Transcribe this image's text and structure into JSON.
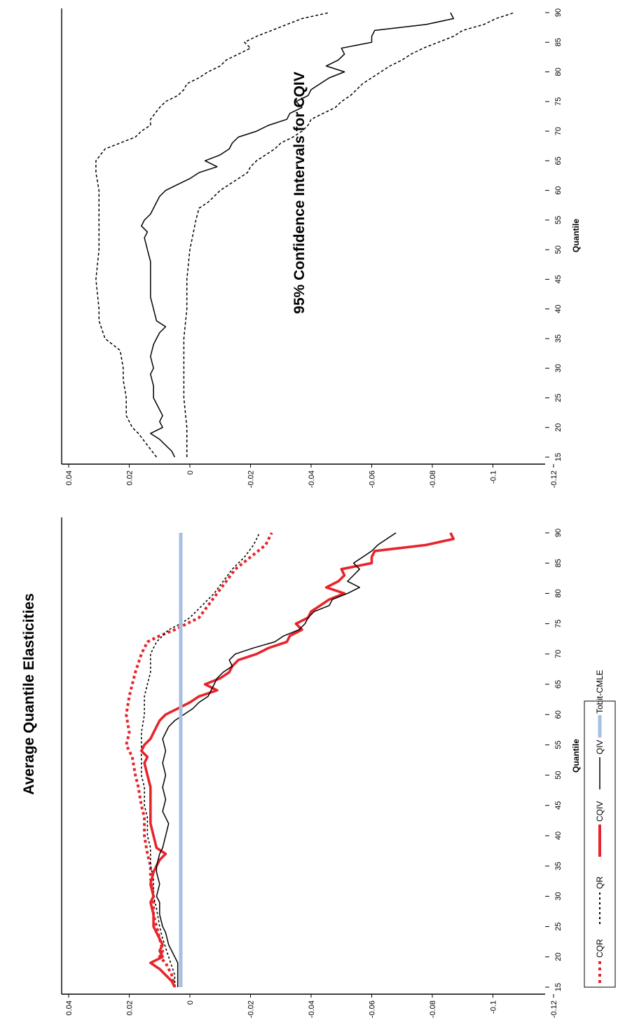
{
  "chart_data": [
    {
      "type": "line",
      "title": "Average Quantile Elasticities",
      "xlabel": "Quantile",
      "ylabel": "",
      "xlim": [
        15,
        90
      ],
      "ylim": [
        -0.12,
        0.04
      ],
      "xticks": [
        "15",
        "20",
        "25",
        "30",
        "35",
        "40",
        "45",
        "50",
        "55",
        "60",
        "65",
        "70",
        "75",
        "80",
        "85",
        "90"
      ],
      "yticks": [
        "0.04",
        "0.02",
        "0",
        "-0.02",
        "-0.04",
        "-0.06",
        "-0.08",
        "-0.1",
        "-0.12"
      ],
      "legend_position": "bottom",
      "series": [
        {
          "name": "CQR",
          "color": "#e8242b",
          "style": "thick-dotted",
          "x": [
            15,
            17,
            19,
            20,
            21,
            23,
            25,
            27,
            30,
            33,
            35,
            37,
            40,
            43,
            45,
            48,
            50,
            53,
            55,
            57,
            60,
            63,
            65,
            67,
            70,
            72,
            73,
            74,
            75,
            76,
            78,
            80,
            82,
            84,
            86,
            88,
            90
          ],
          "y": [
            0.005,
            0.006,
            0.008,
            0.01,
            0.009,
            0.01,
            0.011,
            0.012,
            0.012,
            0.013,
            0.013,
            0.014,
            0.015,
            0.015,
            0.016,
            0.017,
            0.018,
            0.019,
            0.021,
            0.02,
            0.021,
            0.02,
            0.019,
            0.018,
            0.016,
            0.014,
            0.01,
            0.005,
            0.001,
            -0.003,
            -0.006,
            -0.009,
            -0.012,
            -0.015,
            -0.02,
            -0.025,
            -0.027
          ]
        },
        {
          "name": "QR",
          "color": "#000000",
          "style": "dotted",
          "x": [
            15,
            17,
            20,
            23,
            25,
            28,
            30,
            33,
            35,
            38,
            40,
            43,
            45,
            48,
            50,
            53,
            55,
            57,
            60,
            63,
            65,
            67,
            70,
            72,
            74,
            75,
            76,
            78,
            80,
            82,
            84,
            86,
            88,
            90
          ],
          "y": [
            0.005,
            0.005,
            0.007,
            0.009,
            0.01,
            0.011,
            0.012,
            0.012,
            0.013,
            0.013,
            0.014,
            0.014,
            0.015,
            0.015,
            0.016,
            0.016,
            0.016,
            0.016,
            0.015,
            0.015,
            0.014,
            0.013,
            0.013,
            0.011,
            0.007,
            0.003,
            0.0,
            -0.004,
            -0.008,
            -0.011,
            -0.014,
            -0.018,
            -0.021,
            -0.023
          ]
        },
        {
          "name": "CQIV",
          "color": "#e8242b",
          "style": "thick-solid",
          "x": [
            15,
            16,
            17,
            18,
            19,
            20,
            21,
            22,
            24,
            25,
            27,
            29,
            30,
            32,
            34,
            35,
            36,
            37,
            38,
            40,
            42,
            45,
            48,
            50,
            52,
            53,
            54,
            55,
            56,
            57,
            58,
            59,
            60,
            61,
            62,
            63,
            64,
            65,
            66,
            67,
            68,
            69,
            70,
            71,
            72,
            73,
            74,
            75,
            76,
            77,
            78,
            79,
            80,
            81,
            82,
            83,
            84,
            85,
            86,
            87,
            88,
            89,
            90
          ],
          "y": [
            0.005,
            0.006,
            0.008,
            0.01,
            0.013,
            0.009,
            0.01,
            0.009,
            0.011,
            0.012,
            0.012,
            0.013,
            0.012,
            0.013,
            0.012,
            0.011,
            0.01,
            0.008,
            0.011,
            0.012,
            0.013,
            0.013,
            0.013,
            0.014,
            0.015,
            0.014,
            0.016,
            0.015,
            0.013,
            0.012,
            0.011,
            0.01,
            0.008,
            0.004,
            0.0,
            -0.003,
            -0.009,
            -0.005,
            -0.01,
            -0.013,
            -0.014,
            -0.016,
            -0.022,
            -0.026,
            -0.032,
            -0.033,
            -0.037,
            -0.035,
            -0.039,
            -0.04,
            -0.043,
            -0.046,
            -0.051,
            -0.045,
            -0.049,
            -0.051,
            -0.05,
            -0.06,
            -0.06,
            -0.061,
            -0.078,
            -0.087,
            -0.086
          ]
        },
        {
          "name": "QIV",
          "color": "#000000",
          "style": "solid",
          "x": [
            15,
            17,
            19,
            20,
            22,
            24,
            25,
            27,
            29,
            30,
            32,
            34,
            35,
            37,
            38,
            40,
            42,
            44,
            46,
            48,
            50,
            52,
            54,
            56,
            58,
            59,
            60,
            61,
            62,
            63,
            64,
            65,
            66,
            67,
            68,
            69,
            70,
            71,
            72,
            73,
            74,
            75,
            76,
            77,
            78,
            79,
            80,
            81,
            82,
            83,
            84,
            85,
            86,
            87,
            88,
            89,
            90
          ],
          "y": [
            0.004,
            0.004,
            0.004,
            0.005,
            0.007,
            0.008,
            0.009,
            0.01,
            0.01,
            0.011,
            0.01,
            0.011,
            0.011,
            0.01,
            0.009,
            0.008,
            0.007,
            0.009,
            0.008,
            0.009,
            0.008,
            0.009,
            0.008,
            0.009,
            0.007,
            0.005,
            0.002,
            -0.001,
            -0.003,
            -0.006,
            -0.007,
            -0.008,
            -0.009,
            -0.011,
            -0.014,
            -0.013,
            -0.015,
            -0.021,
            -0.028,
            -0.031,
            -0.036,
            -0.038,
            -0.039,
            -0.041,
            -0.046,
            -0.047,
            -0.052,
            -0.056,
            -0.052,
            -0.054,
            -0.056,
            -0.054,
            -0.057,
            -0.06,
            -0.062,
            -0.065,
            -0.068
          ]
        },
        {
          "name": "Tobit-CMLE",
          "color": "#a9bfe0",
          "style": "thick-light",
          "x": [
            15,
            90
          ],
          "y": [
            0.003,
            0.003
          ]
        }
      ]
    },
    {
      "type": "line",
      "title": "95% Confidence Intervals for CQIV",
      "xlabel": "Quantile",
      "ylabel": "",
      "xlim": [
        15,
        90
      ],
      "ylim": [
        -0.12,
        0.04
      ],
      "xticks": [
        "15",
        "20",
        "25",
        "30",
        "35",
        "40",
        "45",
        "50",
        "55",
        "60",
        "65",
        "70",
        "75",
        "80",
        "85",
        "90"
      ],
      "yticks": [
        "0.04",
        "0.02",
        "0",
        "-0.02",
        "-0.04",
        "-0.06",
        "-0.08",
        "-0.1",
        "-0.12"
      ],
      "series": [
        {
          "color": "#000000",
          "style": "dashed",
          "x": [
            15,
            17,
            19,
            20,
            22,
            25,
            28,
            30,
            33,
            35,
            38,
            40,
            45,
            50,
            55,
            60,
            63,
            65,
            67,
            68,
            69,
            70,
            71,
            72,
            74,
            75,
            76,
            77,
            78,
            79,
            80,
            81,
            82,
            83,
            84,
            85,
            86,
            87,
            88,
            89,
            90
          ],
          "y": [
            0.011,
            0.014,
            0.017,
            0.019,
            0.021,
            0.021,
            0.022,
            0.022,
            0.023,
            0.028,
            0.03,
            0.03,
            0.031,
            0.03,
            0.03,
            0.03,
            0.031,
            0.031,
            0.028,
            0.023,
            0.018,
            0.016,
            0.013,
            0.013,
            0.01,
            0.008,
            0.004,
            0.002,
            0.001,
            -0.003,
            -0.006,
            -0.01,
            -0.012,
            -0.016,
            -0.02,
            -0.018,
            -0.022,
            -0.027,
            -0.032,
            -0.037,
            -0.046
          ]
        },
        {
          "color": "#000000",
          "style": "solid",
          "x": [
            15,
            16,
            17,
            18,
            19,
            20,
            21,
            22,
            24,
            25,
            27,
            29,
            30,
            32,
            34,
            35,
            36,
            37,
            38,
            40,
            42,
            45,
            48,
            50,
            52,
            53,
            54,
            55,
            56,
            57,
            58,
            59,
            60,
            61,
            62,
            63,
            64,
            65,
            66,
            67,
            68,
            69,
            70,
            71,
            72,
            73,
            74,
            75,
            76,
            77,
            78,
            79,
            80,
            81,
            82,
            83,
            84,
            85,
            86,
            87,
            88,
            89,
            90
          ],
          "y": [
            0.005,
            0.006,
            0.008,
            0.01,
            0.013,
            0.009,
            0.01,
            0.009,
            0.011,
            0.012,
            0.012,
            0.013,
            0.012,
            0.013,
            0.012,
            0.011,
            0.01,
            0.008,
            0.011,
            0.012,
            0.013,
            0.013,
            0.013,
            0.014,
            0.015,
            0.014,
            0.016,
            0.015,
            0.013,
            0.012,
            0.011,
            0.01,
            0.008,
            0.004,
            0.0,
            -0.003,
            -0.009,
            -0.005,
            -0.01,
            -0.013,
            -0.014,
            -0.016,
            -0.022,
            -0.026,
            -0.032,
            -0.033,
            -0.037,
            -0.035,
            -0.039,
            -0.04,
            -0.043,
            -0.046,
            -0.051,
            -0.045,
            -0.049,
            -0.051,
            -0.05,
            -0.06,
            -0.06,
            -0.061,
            -0.078,
            -0.087,
            -0.086
          ]
        },
        {
          "color": "#000000",
          "style": "dashed",
          "x": [
            15,
            17,
            20,
            25,
            30,
            35,
            40,
            45,
            50,
            55,
            57,
            58,
            59,
            60,
            61,
            62,
            63,
            64,
            65,
            66,
            67,
            68,
            69,
            70,
            71,
            72,
            73,
            74,
            75,
            76,
            77,
            78,
            79,
            80,
            81,
            82,
            83,
            84,
            85,
            86,
            87,
            88,
            89,
            90
          ],
          "y": [
            0.001,
            0.001,
            0.001,
            0.002,
            0.002,
            0.002,
            0.001,
            0.001,
            0.0,
            -0.002,
            -0.003,
            -0.006,
            -0.008,
            -0.01,
            -0.013,
            -0.016,
            -0.019,
            -0.02,
            -0.022,
            -0.025,
            -0.028,
            -0.03,
            -0.034,
            -0.037,
            -0.039,
            -0.04,
            -0.044,
            -0.048,
            -0.05,
            -0.053,
            -0.055,
            -0.057,
            -0.06,
            -0.063,
            -0.066,
            -0.07,
            -0.073,
            -0.077,
            -0.082,
            -0.087,
            -0.09,
            -0.097,
            -0.101,
            -0.107
          ]
        }
      ]
    }
  ]
}
